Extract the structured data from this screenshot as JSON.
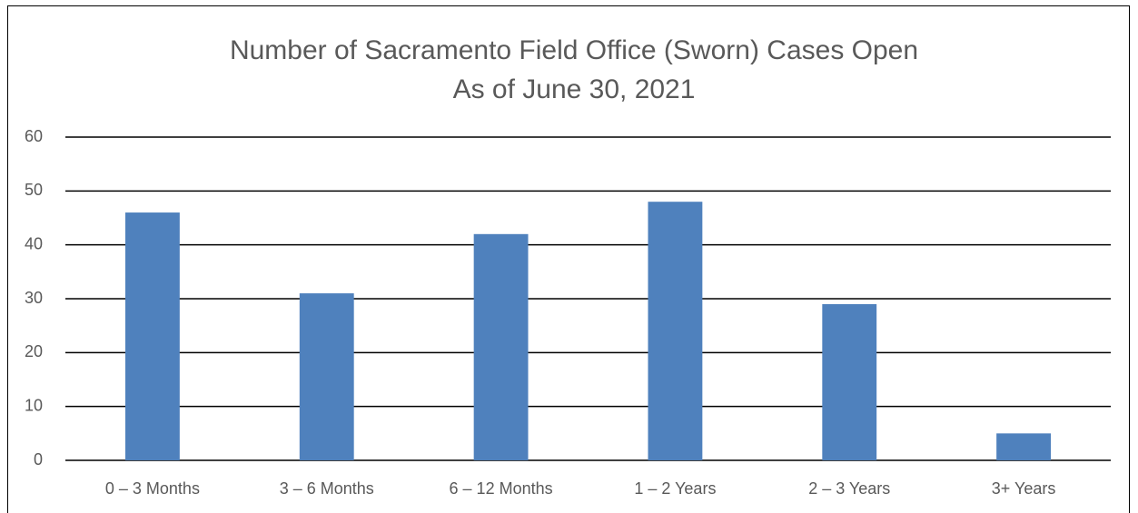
{
  "chart_data": {
    "type": "bar",
    "title": "Number of Sacramento Field Office (Sworn) Cases Open",
    "subtitle": "As of June 30, 2021",
    "categories": [
      "0 – 3 Months",
      "3 – 6 Months",
      "6 – 12 Months",
      "1 – 2 Years",
      "2 – 3 Years",
      "3+ Years"
    ],
    "values": [
      46,
      31,
      42,
      48,
      29,
      5
    ],
    "color": "#4f81bd",
    "ylim": [
      0,
      60
    ],
    "yticks": [
      0,
      10,
      20,
      30,
      40,
      50,
      60
    ],
    "grid": true
  }
}
